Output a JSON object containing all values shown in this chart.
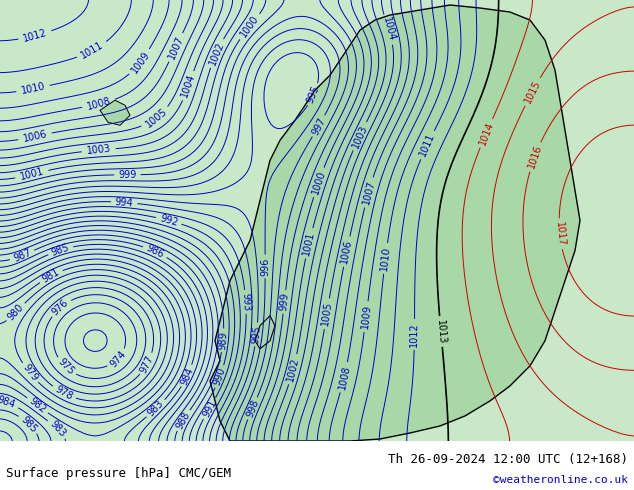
{
  "title_left": "Surface pressure [hPa] CMC/GEM",
  "title_right": "Th 26-09-2024 12:00 UTC (12+168)",
  "credit": "©weatheronline.co.uk",
  "bg_color": "#c8e8c8",
  "land_color": "#d0d0d0",
  "green_land_color": "#a8d8a8",
  "figsize": [
    6.34,
    4.9
  ],
  "dpi": 100,
  "contour_color_blue": "#0000cc",
  "contour_color_red": "#cc0000",
  "contour_color_black": "#000000",
  "label_fontsize": 7,
  "footer_fontsize": 9,
  "credit_fontsize": 8,
  "credit_color": "#0000cc"
}
